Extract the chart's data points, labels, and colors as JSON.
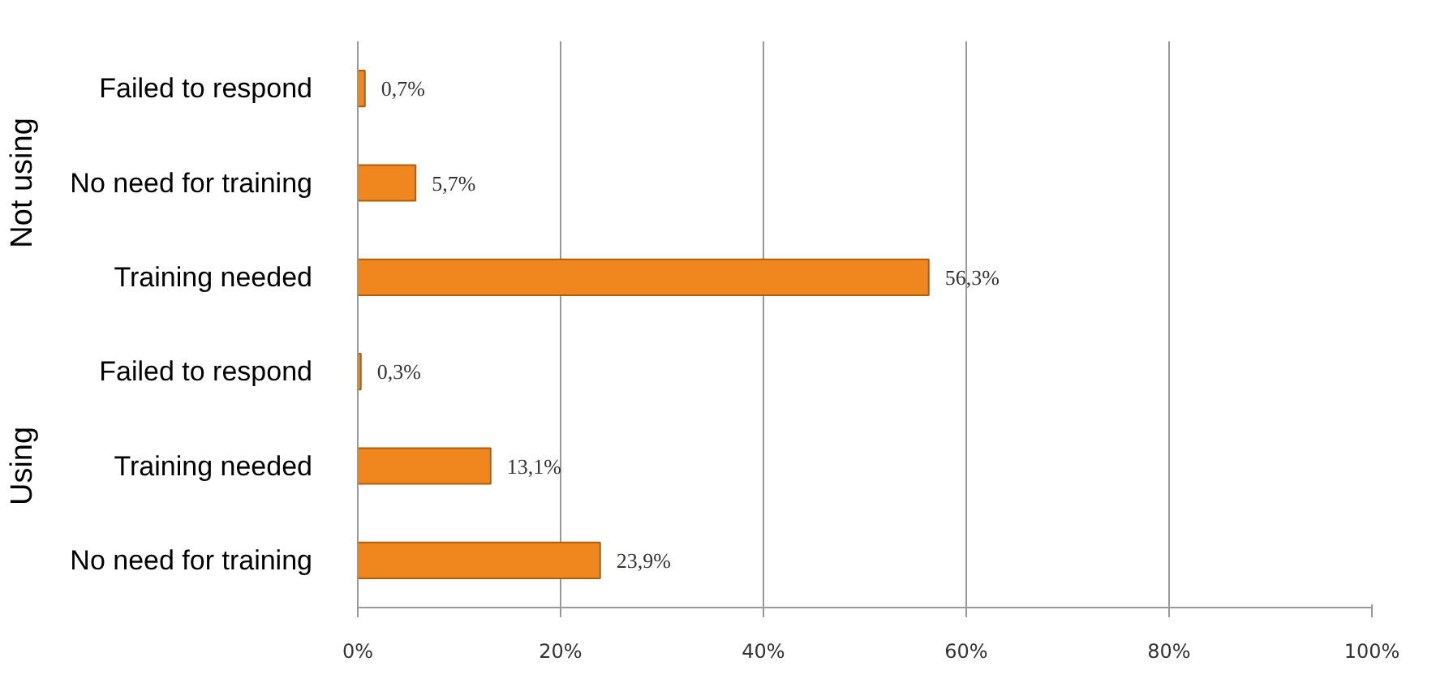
{
  "chart_data": {
    "type": "bar",
    "orientation": "horizontal",
    "categories": [
      "Failed to respond",
      "No need for training",
      "Training needed",
      "Failed to respond",
      "Training needed",
      "No need for training"
    ],
    "values": [
      0.7,
      5.7,
      56.3,
      0.3,
      13.1,
      23.9
    ],
    "value_labels": [
      "0,7%",
      "5,7%",
      "56,3%",
      "0,3%",
      "13,1%",
      "23,9%"
    ],
    "color": "#f0861e",
    "annotations": [
      "Not using",
      "Using"
    ],
    "xlim": [
      0,
      100
    ],
    "xticks": [
      {
        "value": 0,
        "label": "0%"
      },
      {
        "value": 20,
        "label": "20%"
      },
      {
        "value": 40,
        "label": "40%"
      },
      {
        "value": 60,
        "label": "60%"
      },
      {
        "value": 80,
        "label": "80%"
      },
      {
        "value": 100,
        "label": "100%"
      }
    ],
    "grid": "x"
  }
}
